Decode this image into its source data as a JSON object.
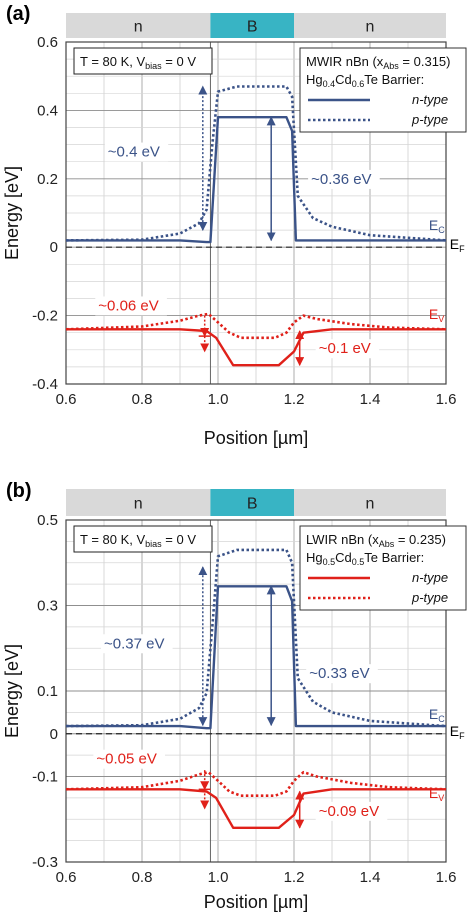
{
  "chart_data": [
    {
      "type": "line",
      "panel_label": "(a)",
      "xlabel": "Position [µm]",
      "ylabel": "Energy [eV]",
      "xlim": [
        0.6,
        1.6
      ],
      "ylim": [
        -0.4,
        0.6
      ],
      "xticks": [
        "0.6",
        "0.8",
        "1.0",
        "1.2",
        "1.4",
        "1.6"
      ],
      "yticks": [
        "0.6",
        "0.4",
        "0.2",
        "0",
        "-0.2",
        "-0.4"
      ],
      "grid": true,
      "regions": [
        {
          "label": "n",
          "x0": 0.6,
          "x1": 0.98,
          "color": "#d9d9d9"
        },
        {
          "label": "B",
          "x0": 0.98,
          "x1": 1.2,
          "color": "#38b4c4"
        },
        {
          "label": "n",
          "x0": 1.2,
          "x1": 1.6,
          "color": "#d9d9d9"
        }
      ],
      "condition_label": {
        "main": "T = 80 K, V",
        "sub": "bias",
        "tail": " = 0 V"
      },
      "legend": {
        "placement": "top-right",
        "line1": {
          "main": "MWIR nBn (x",
          "sub": "Abs",
          "tail": " = 0.315)"
        },
        "line2": {
          "parts": [
            [
              "Hg",
              ""
            ],
            [
              "0.4",
              "sub"
            ],
            [
              "Cd",
              ""
            ],
            [
              "0.6",
              "sub"
            ],
            [
              "Te Barrier:",
              ""
            ]
          ]
        },
        "entries": [
          {
            "label": "n-type",
            "color": "#3b5388",
            "dash": false
          },
          {
            "label": "p-type",
            "color": "#3b5388",
            "dash": true
          }
        ]
      },
      "band_labels": [
        {
          "main": "E",
          "sub": "C",
          "x": 1.555,
          "y": 0.05,
          "color": "#3b5388"
        },
        {
          "main": "E",
          "sub": "F",
          "x": 1.61,
          "y": -0.005,
          "color": "#000000"
        },
        {
          "main": "E",
          "sub": "V",
          "x": 1.555,
          "y": -0.21,
          "color": "#e0211a"
        }
      ],
      "annotations": [
        {
          "text": "~0.4 eV",
          "x": 0.71,
          "y": 0.265,
          "color": "#3b5388"
        },
        {
          "text": "~0.36 eV",
          "x": 1.245,
          "y": 0.185,
          "color": "#3b5388"
        },
        {
          "text": "~0.06 eV",
          "x": 0.685,
          "y": -0.185,
          "color": "#e0211a"
        },
        {
          "text": "~0.1 eV",
          "x": 1.265,
          "y": -0.31,
          "color": "#e0211a"
        }
      ],
      "arrows": [
        {
          "x": 0.96,
          "y0": 0.05,
          "y1": 0.47,
          "color": "#3b5388",
          "dash": true
        },
        {
          "x": 1.14,
          "y0": 0.02,
          "y1": 0.38,
          "color": "#3b5388",
          "dash": false
        },
        {
          "x": 0.965,
          "y0": -0.2,
          "y1": -0.26,
          "color": "#e0211a",
          "dash": true,
          "tail": -0.305
        },
        {
          "x": 1.215,
          "y0": -0.245,
          "y1": -0.345,
          "color": "#e0211a",
          "dash": false
        }
      ],
      "fermi_level": 0,
      "series": [
        {
          "name": "n-type",
          "band": "Ec",
          "color": "#3b5388",
          "dash": false,
          "x": [
            0.6,
            0.9,
            0.97,
            0.98,
            1.0,
            1.18,
            1.195,
            1.205,
            1.6
          ],
          "y": [
            0.02,
            0.02,
            0.015,
            0.015,
            0.38,
            0.38,
            0.34,
            0.02,
            0.02
          ]
        },
        {
          "name": "p-type",
          "band": "Ec",
          "color": "#3b5388",
          "dash": true,
          "x": [
            0.6,
            0.8,
            0.9,
            0.95,
            0.97,
            0.985,
            1.0,
            1.05,
            1.18,
            1.195,
            1.21,
            1.25,
            1.3,
            1.4,
            1.6
          ],
          "y": [
            0.02,
            0.022,
            0.04,
            0.07,
            0.11,
            0.3,
            0.455,
            0.47,
            0.47,
            0.44,
            0.15,
            0.085,
            0.06,
            0.035,
            0.02
          ]
        },
        {
          "name": "n-type",
          "band": "Ev",
          "color": "#e0211a",
          "dash": false,
          "x": [
            0.6,
            0.9,
            0.97,
            0.995,
            1.04,
            1.16,
            1.2,
            1.225,
            1.3,
            1.6
          ],
          "y": [
            -0.24,
            -0.24,
            -0.245,
            -0.265,
            -0.345,
            -0.345,
            -0.305,
            -0.25,
            -0.24,
            -0.24
          ]
        },
        {
          "name": "p-type",
          "band": "Ev",
          "color": "#e0211a",
          "dash": true,
          "x": [
            0.6,
            0.8,
            0.9,
            0.95,
            0.975,
            1.0,
            1.03,
            1.06,
            1.15,
            1.18,
            1.2,
            1.225,
            1.26,
            1.35,
            1.45,
            1.6
          ],
          "y": [
            -0.24,
            -0.232,
            -0.215,
            -0.2,
            -0.195,
            -0.22,
            -0.25,
            -0.265,
            -0.265,
            -0.25,
            -0.22,
            -0.2,
            -0.21,
            -0.225,
            -0.235,
            -0.24
          ]
        }
      ]
    },
    {
      "type": "line",
      "panel_label": "(b)",
      "xlabel": "Position [µm]",
      "ylabel": "Energy [eV]",
      "xlim": [
        0.6,
        1.6
      ],
      "ylim": [
        -0.3,
        0.5
      ],
      "xticks": [
        "0.6",
        "0.8",
        "1.0",
        "1.2",
        "1.4",
        "1.6"
      ],
      "yticks": [
        "0.5",
        "0.3",
        "0.1",
        "0",
        "-0.1",
        "-0.3"
      ],
      "yticks_at": [
        0.5,
        0.3,
        0.1,
        0,
        -0.1,
        -0.3
      ],
      "grid": true,
      "regions": [
        {
          "label": "n",
          "x0": 0.6,
          "x1": 0.98,
          "color": "#d9d9d9"
        },
        {
          "label": "B",
          "x0": 0.98,
          "x1": 1.2,
          "color": "#38b4c4"
        },
        {
          "label": "n",
          "x0": 1.2,
          "x1": 1.6,
          "color": "#d9d9d9"
        }
      ],
      "condition_label": {
        "main": "T = 80 K, V",
        "sub": "bias",
        "tail": " = 0 V"
      },
      "legend": {
        "placement": "top-right",
        "line1": {
          "main": "LWIR nBn (x",
          "sub": "Abs",
          "tail": " = 0.235)"
        },
        "line2": {
          "parts": [
            [
              "Hg",
              ""
            ],
            [
              "0.5",
              "sub"
            ],
            [
              "Cd",
              ""
            ],
            [
              "0.5",
              "sub"
            ],
            [
              "Te Barrier:",
              ""
            ]
          ]
        },
        "entries": [
          {
            "label": "n-type",
            "color": "#e0211a",
            "dash": false
          },
          {
            "label": "p-type",
            "color": "#e0211a",
            "dash": true
          }
        ]
      },
      "band_labels": [
        {
          "main": "E",
          "sub": "C",
          "x": 1.555,
          "y": 0.035,
          "color": "#3b5388"
        },
        {
          "main": "E",
          "sub": "F",
          "x": 1.61,
          "y": -0.005,
          "color": "#000000"
        },
        {
          "main": "E",
          "sub": "V",
          "x": 1.555,
          "y": -0.15,
          "color": "#e0211a"
        }
      ],
      "annotations": [
        {
          "text": "~0.37 eV",
          "x": 0.7,
          "y": 0.2,
          "color": "#3b5388"
        },
        {
          "text": "~0.33 eV",
          "x": 1.24,
          "y": 0.13,
          "color": "#3b5388"
        },
        {
          "text": "~0.05 eV",
          "x": 0.68,
          "y": -0.07,
          "color": "#e0211a"
        },
        {
          "text": "~0.09 eV",
          "x": 1.265,
          "y": -0.192,
          "color": "#e0211a"
        }
      ],
      "arrows": [
        {
          "x": 0.96,
          "y0": 0.02,
          "y1": 0.39,
          "color": "#3b5388",
          "dash": true
        },
        {
          "x": 1.14,
          "y0": 0.02,
          "y1": 0.345,
          "color": "#3b5388",
          "dash": false
        },
        {
          "x": 0.965,
          "y0": -0.085,
          "y1": -0.13,
          "color": "#e0211a",
          "dash": true,
          "tail": -0.175
        },
        {
          "x": 1.215,
          "y0": -0.135,
          "y1": -0.22,
          "color": "#e0211a",
          "dash": false
        }
      ],
      "fermi_level": 0,
      "series": [
        {
          "name": "n-type",
          "band": "Ec",
          "color": "#3b5388",
          "dash": false,
          "x": [
            0.6,
            0.9,
            0.97,
            0.98,
            1.0,
            1.18,
            1.195,
            1.205,
            1.6
          ],
          "y": [
            0.018,
            0.018,
            0.013,
            0.013,
            0.345,
            0.345,
            0.31,
            0.018,
            0.018
          ]
        },
        {
          "name": "p-type",
          "band": "Ec",
          "color": "#3b5388",
          "dash": true,
          "x": [
            0.6,
            0.8,
            0.9,
            0.95,
            0.97,
            0.985,
            1.0,
            1.05,
            1.18,
            1.195,
            1.21,
            1.25,
            1.3,
            1.4,
            1.6
          ],
          "y": [
            0.018,
            0.02,
            0.035,
            0.06,
            0.095,
            0.25,
            0.415,
            0.43,
            0.43,
            0.4,
            0.13,
            0.075,
            0.05,
            0.03,
            0.018
          ]
        },
        {
          "name": "n-type",
          "band": "Ev",
          "color": "#e0211a",
          "dash": false,
          "x": [
            0.6,
            0.9,
            0.97,
            0.995,
            1.04,
            1.16,
            1.2,
            1.225,
            1.3,
            1.6
          ],
          "y": [
            -0.13,
            -0.13,
            -0.135,
            -0.15,
            -0.22,
            -0.22,
            -0.19,
            -0.14,
            -0.13,
            -0.13
          ]
        },
        {
          "name": "p-type",
          "band": "Ev",
          "color": "#e0211a",
          "dash": true,
          "x": [
            0.6,
            0.8,
            0.9,
            0.95,
            0.975,
            1.0,
            1.03,
            1.06,
            1.15,
            1.18,
            1.2,
            1.225,
            1.26,
            1.35,
            1.45,
            1.6
          ],
          "y": [
            -0.13,
            -0.125,
            -0.11,
            -0.095,
            -0.09,
            -0.11,
            -0.135,
            -0.145,
            -0.145,
            -0.135,
            -0.11,
            -0.09,
            -0.1,
            -0.115,
            -0.125,
            -0.13
          ]
        }
      ]
    }
  ]
}
